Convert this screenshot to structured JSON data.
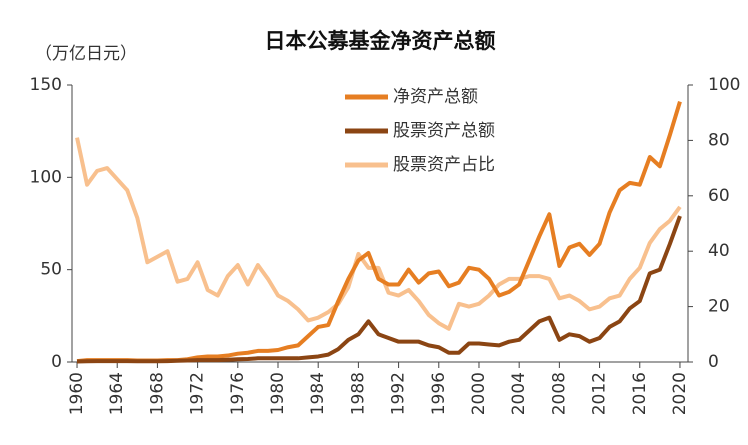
{
  "chart_data": {
    "type": "line",
    "title": "日本公募基金净资产总额",
    "y_label": "（万亿日元）",
    "x": [
      1960,
      1961,
      1962,
      1963,
      1964,
      1965,
      1966,
      1967,
      1968,
      1969,
      1970,
      1971,
      1972,
      1973,
      1974,
      1975,
      1976,
      1977,
      1978,
      1979,
      1980,
      1981,
      1982,
      1983,
      1984,
      1985,
      1986,
      1987,
      1988,
      1989,
      1990,
      1991,
      1992,
      1993,
      1994,
      1995,
      1996,
      1997,
      1998,
      1999,
      2000,
      2001,
      2002,
      2003,
      2004,
      2005,
      2006,
      2007,
      2008,
      2009,
      2010,
      2011,
      2012,
      2013,
      2014,
      2015,
      2016,
      2017,
      2018,
      2019,
      2020
    ],
    "series": [
      {
        "name": "净资产总额",
        "color": "#e67e22",
        "values": [
          0.5,
          1,
          1,
          1,
          1,
          1,
          0.8,
          0.8,
          0.8,
          1,
          1,
          1.5,
          2.5,
          3,
          3,
          3.5,
          4.5,
          5,
          6,
          6,
          6.5,
          8,
          9,
          14,
          19,
          20,
          33,
          45,
          55,
          59,
          45,
          42,
          42,
          50,
          43,
          48,
          49,
          41,
          43,
          51,
          50,
          45,
          36,
          38,
          42,
          55,
          68,
          80,
          52,
          62,
          64,
          58,
          64,
          81,
          93,
          97,
          96,
          111,
          106,
          123,
          141
        ]
      },
      {
        "name": "股票资产总额",
        "color": "#8b4513",
        "values": [
          0.3,
          0.4,
          0.5,
          0.5,
          0.5,
          0.5,
          0.4,
          0.4,
          0.4,
          0.5,
          0.7,
          0.8,
          1,
          1,
          1,
          1.2,
          1.5,
          1.6,
          2,
          2,
          2,
          2,
          2,
          2.5,
          3,
          4,
          7,
          12,
          15,
          22,
          15,
          13,
          11,
          11,
          11,
          9,
          8,
          5,
          5,
          10,
          10,
          9.5,
          9,
          11,
          12,
          17,
          22,
          24,
          12,
          15,
          14,
          11,
          13,
          19,
          22,
          29,
          33,
          48,
          50,
          64,
          79
        ]
      },
      {
        "name": "股票资产占比",
        "color": "#f8c08e",
        "axis": "y2",
        "values": [
          81,
          64,
          69,
          70,
          66,
          62,
          52,
          36,
          38,
          40,
          29,
          30,
          36,
          26,
          24,
          31,
          35,
          28,
          35,
          30,
          24,
          22,
          19,
          15,
          16,
          18,
          21,
          27,
          39,
          34,
          34,
          25,
          24,
          26,
          22,
          17,
          14,
          12,
          21,
          20,
          21,
          24,
          28,
          30,
          30,
          31,
          31,
          30,
          23,
          24,
          22,
          19,
          20,
          23,
          24,
          30,
          34,
          43,
          48,
          51,
          56
        ]
      }
    ],
    "xlim": [
      1959.5,
      2020.8
    ],
    "xticks": [
      1960,
      1964,
      1968,
      1972,
      1976,
      1980,
      1984,
      1988,
      1992,
      1996,
      2000,
      2004,
      2008,
      2012,
      2016,
      2020
    ],
    "ylim": [
      0,
      150
    ],
    "yticks": [
      0,
      50,
      100,
      150
    ],
    "y2lim": [
      0,
      100
    ],
    "y2ticks": [
      0,
      20,
      40,
      60,
      80,
      100
    ],
    "legend": "top"
  }
}
